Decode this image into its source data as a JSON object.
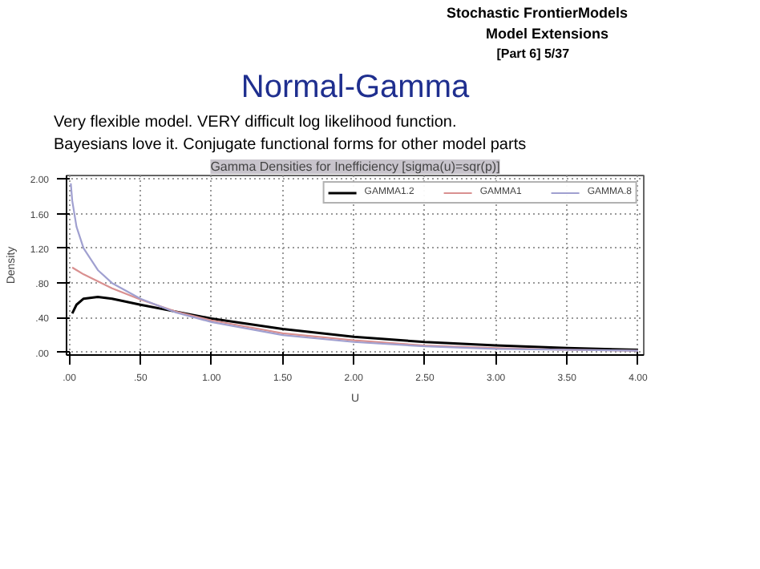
{
  "chart_data": {
    "type": "line",
    "title": "Gamma Densities for Inefficiency [sigma(u)=sqr(p)]",
    "annotations": [
      "Stochastic FrontierModels",
      "Model Extensions",
      "[Part 6]   5/37",
      "Normal-Gamma",
      "Very flexible model.    VERY difficult log likelihood function.",
      "Bayesians love it.  Conjugate functional forms for other model parts"
    ],
    "xlabel": "U",
    "ylabel": "Density",
    "xlim": [
      -0.02,
      4.04
    ],
    "ylim": [
      -0.03,
      2.04
    ],
    "xticks": [
      {
        "value": 0,
        "label": ".00"
      },
      {
        "value": 0.5,
        "label": ".50"
      },
      {
        "value": 1,
        "label": "1.00"
      },
      {
        "value": 1.5,
        "label": "1.50"
      },
      {
        "value": 2,
        "label": "2.00"
      },
      {
        "value": 2.5,
        "label": "2.50"
      },
      {
        "value": 3,
        "label": "3.00"
      },
      {
        "value": 3.5,
        "label": "3.50"
      },
      {
        "value": 4,
        "label": "4.00"
      }
    ],
    "yticks": [
      {
        "value": 0,
        "label": ".00"
      },
      {
        "value": 0.4,
        "label": ".40"
      },
      {
        "value": 0.8,
        "label": ".80"
      },
      {
        "value": 1.2,
        "label": "1.20"
      },
      {
        "value": 1.6,
        "label": "1.60"
      },
      {
        "value": 2,
        "label": "2.00"
      }
    ],
    "grid": true,
    "legend": "top right",
    "line_style": "solid",
    "series": [
      {
        "name": "GAMMA1.2",
        "color": "#000000",
        "x": [
          0.02,
          0.05,
          0.1,
          0.2,
          0.3,
          0.5,
          0.75,
          1,
          1.5,
          2,
          2.5,
          3,
          3.5,
          4
        ],
        "values": [
          0.45,
          0.55,
          0.62,
          0.64,
          0.62,
          0.55,
          0.47,
          0.39,
          0.27,
          0.18,
          0.12,
          0.08,
          0.05,
          0.03
        ]
      },
      {
        "name": "GAMMA1",
        "color": "#d99090",
        "x": [
          0.02,
          0.05,
          0.1,
          0.2,
          0.3,
          0.5,
          0.75,
          1,
          1.5,
          2,
          2.5,
          3,
          3.5,
          4
        ],
        "values": [
          0.98,
          0.95,
          0.9,
          0.82,
          0.74,
          0.61,
          0.47,
          0.37,
          0.22,
          0.14,
          0.08,
          0.05,
          0.03,
          0.02
        ]
      },
      {
        "name": "GAMMA.8",
        "color": "#a0a0d0",
        "x": [
          0.01,
          0.02,
          0.05,
          0.1,
          0.2,
          0.3,
          0.5,
          0.75,
          1,
          1.5,
          2,
          2.5,
          3,
          3.5,
          4
        ],
        "values": [
          1.95,
          1.75,
          1.45,
          1.2,
          0.95,
          0.8,
          0.62,
          0.46,
          0.35,
          0.2,
          0.12,
          0.07,
          0.04,
          0.03,
          0.02
        ]
      }
    ]
  }
}
